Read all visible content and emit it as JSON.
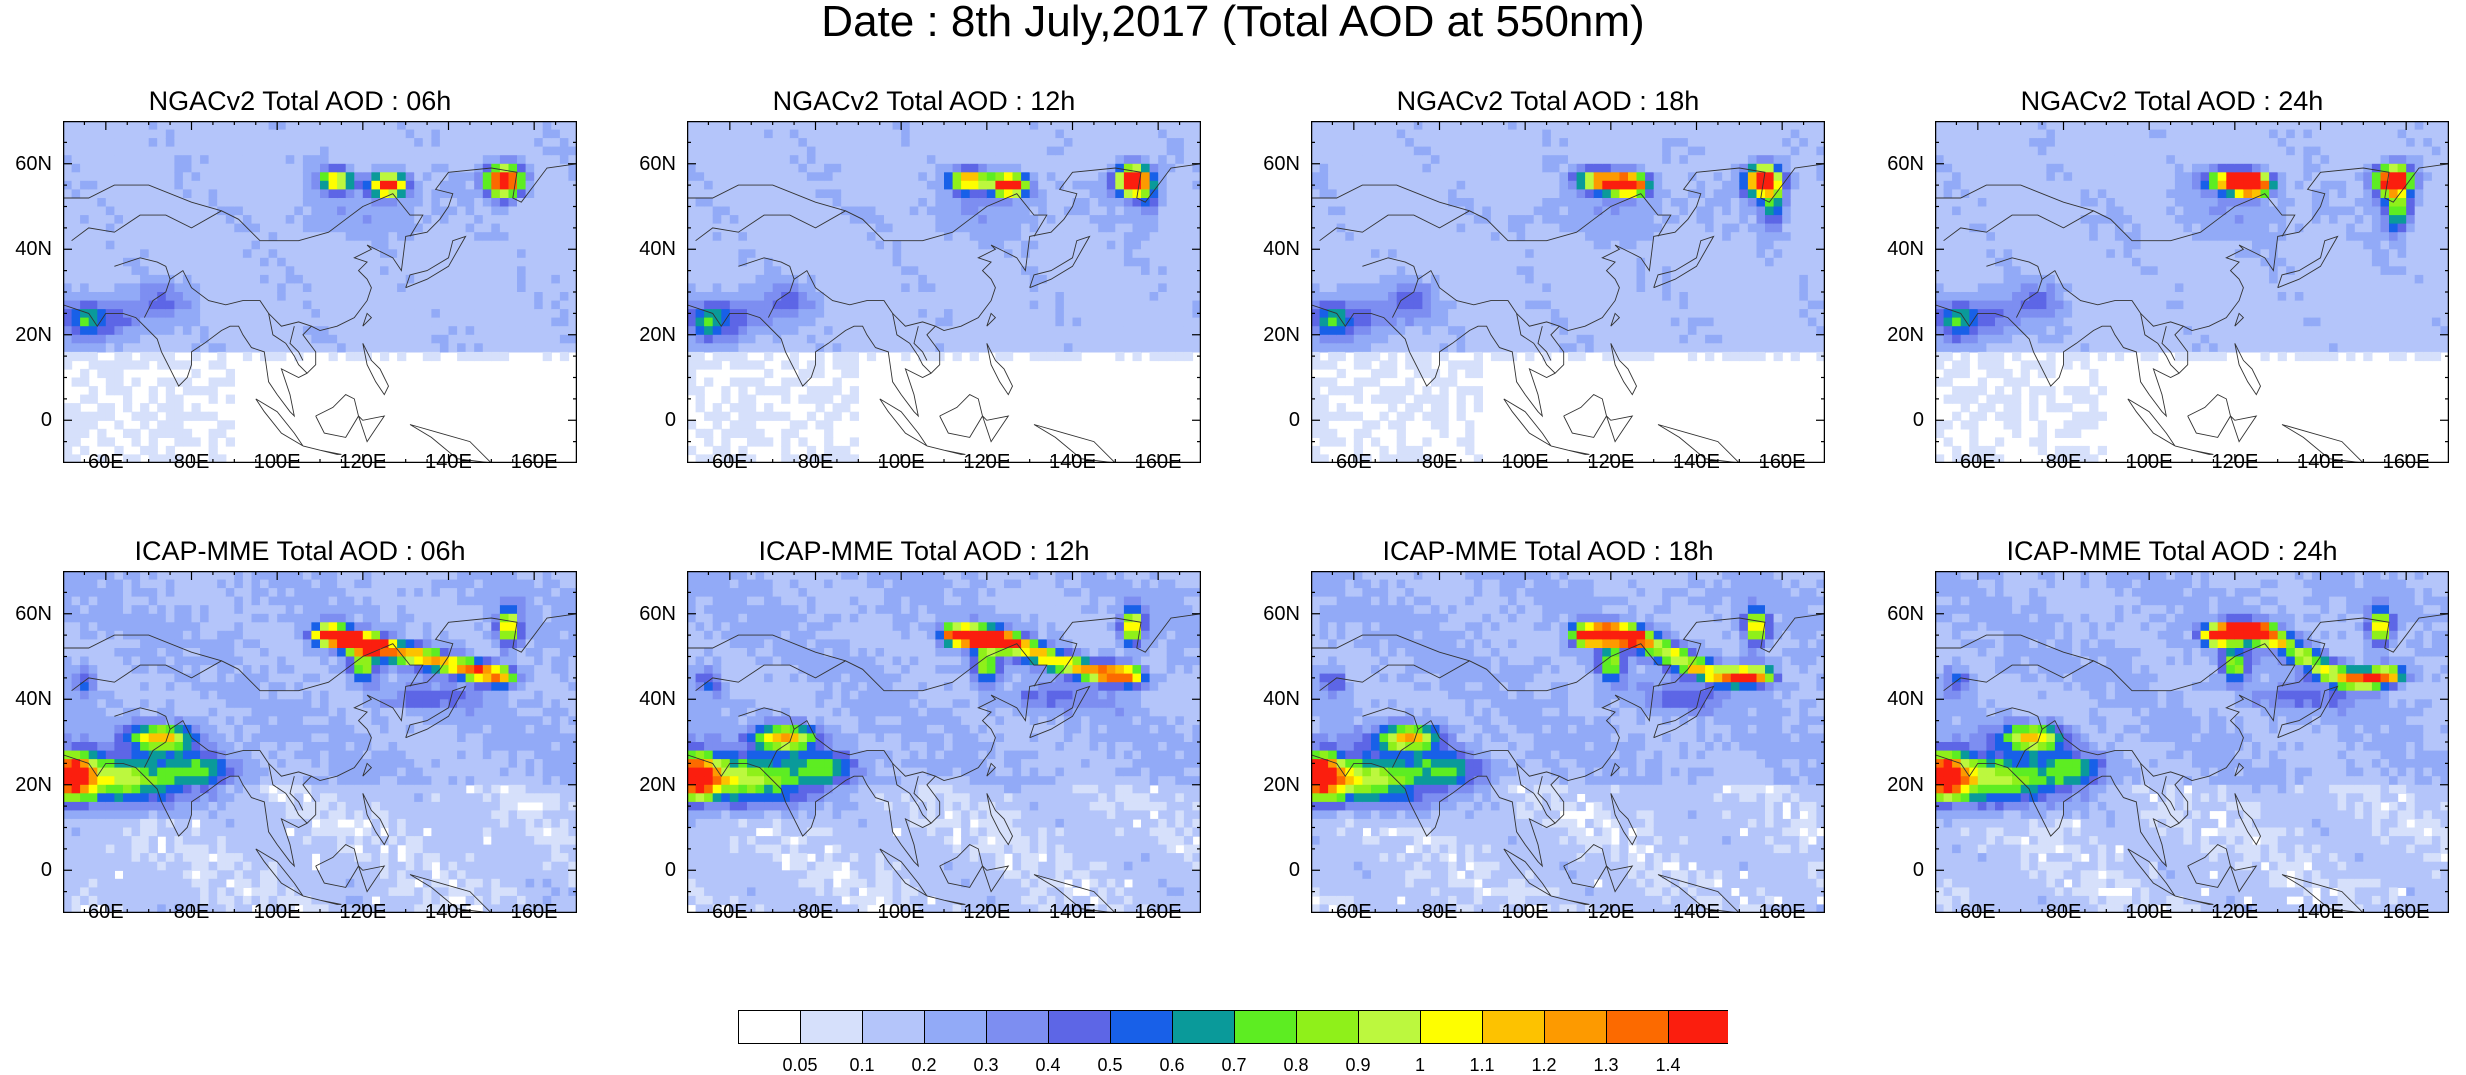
{
  "title": "Date : 8th July,2017 (Total AOD at 550nm)",
  "lat_ticks": [
    "60N",
    "40N",
    "20N",
    "0"
  ],
  "lon_ticks": [
    "60E",
    "80E",
    "100E",
    "120E",
    "140E",
    "160E"
  ],
  "panels": [
    {
      "title": "NGACv2 Total AOD : 06h",
      "model": "NGACv2",
      "hour": 6
    },
    {
      "title": "NGACv2 Total AOD : 12h",
      "model": "NGACv2",
      "hour": 12
    },
    {
      "title": "NGACv2 Total AOD : 18h",
      "model": "NGACv2",
      "hour": 18
    },
    {
      "title": "NGACv2 Total AOD : 24h",
      "model": "NGACv2",
      "hour": 24
    },
    {
      "title": "ICAP-MME Total AOD : 06h",
      "model": "ICAP-MME",
      "hour": 6
    },
    {
      "title": "ICAP-MME Total AOD : 12h",
      "model": "ICAP-MME",
      "hour": 12
    },
    {
      "title": "ICAP-MME Total AOD : 18h",
      "model": "ICAP-MME",
      "hour": 18
    },
    {
      "title": "ICAP-MME Total AOD : 24h",
      "model": "ICAP-MME",
      "hour": 24
    }
  ],
  "colorbar": {
    "labels": [
      "0.05",
      "0.1",
      "0.2",
      "0.3",
      "0.4",
      "0.5",
      "0.6",
      "0.7",
      "0.8",
      "0.9",
      "1",
      "1.1",
      "1.2",
      "1.3",
      "1.4"
    ],
    "colors": [
      "#ffffff",
      "#d6e0fb",
      "#b4c5fa",
      "#92aaf7",
      "#7d8ef1",
      "#5d66e6",
      "#1860e8",
      "#0a9a9a",
      "#5ded22",
      "#8ff01a",
      "#bcf83e",
      "#fefe00",
      "#fdc200",
      "#fd9a00",
      "#fc6a00",
      "#fb1e0e"
    ]
  }
}
